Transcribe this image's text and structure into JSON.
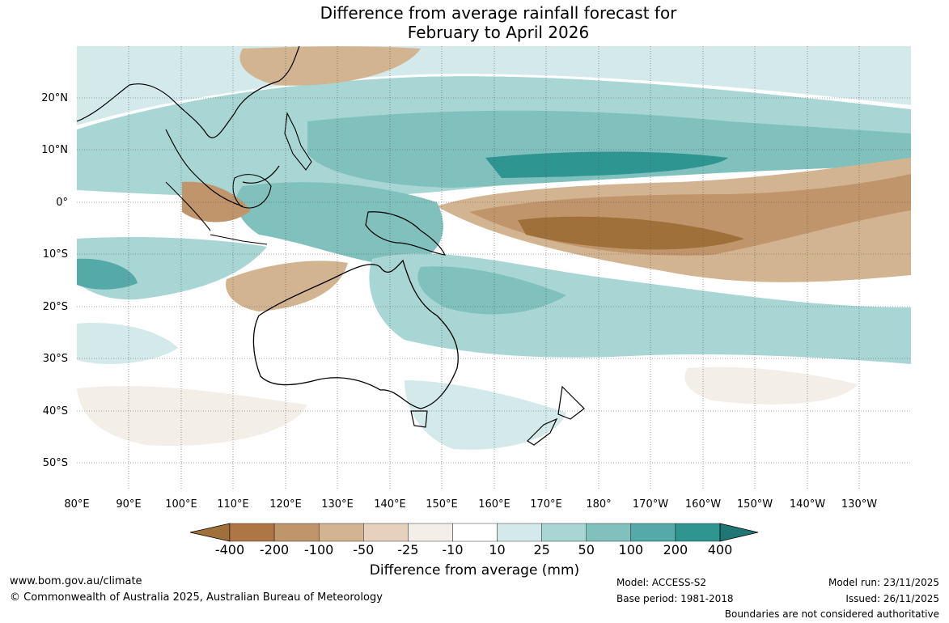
{
  "title_line1": "Difference from average rainfall forecast for",
  "title_line2": "February to April 2026",
  "lat_labels": [
    "20°N",
    "10°N",
    "0°",
    "10°S",
    "20°S",
    "30°S",
    "40°S",
    "50°S"
  ],
  "lon_labels": [
    "80°E",
    "90°E",
    "100°E",
    "110°E",
    "120°E",
    "130°E",
    "140°E",
    "150°E",
    "160°E",
    "170°E",
    "180°",
    "170°W",
    "160°W",
    "150°W",
    "140°W",
    "130°W"
  ],
  "colorbar": {
    "labels": [
      "-400",
      "-200",
      "-100",
      "-50",
      "-25",
      "-10",
      "10",
      "25",
      "50",
      "100",
      "200",
      "400"
    ],
    "colors": [
      "#a0703a",
      "#ad7644",
      "#c0956b",
      "#d3b491",
      "#e5d1bd",
      "#f3eee7",
      "#ffffff",
      "#d4eaea",
      "#a8d6d4",
      "#80c0bd",
      "#55a9a6",
      "#2e9591",
      "#1f7673"
    ],
    "title": "Difference from average (mm)"
  },
  "footer": {
    "url": "www.bom.gov.au/climate",
    "copyright": "© Commonwealth of Australia 2025, Australian Bureau of Meteorology",
    "model": "Model: ACCESS-S2",
    "base_period": "Base period: 1981-2018",
    "model_run": "Model run: 23/11/2025",
    "issued": "Issued: 26/11/2025",
    "disclaimer": "Boundaries are not considered authoritative"
  }
}
